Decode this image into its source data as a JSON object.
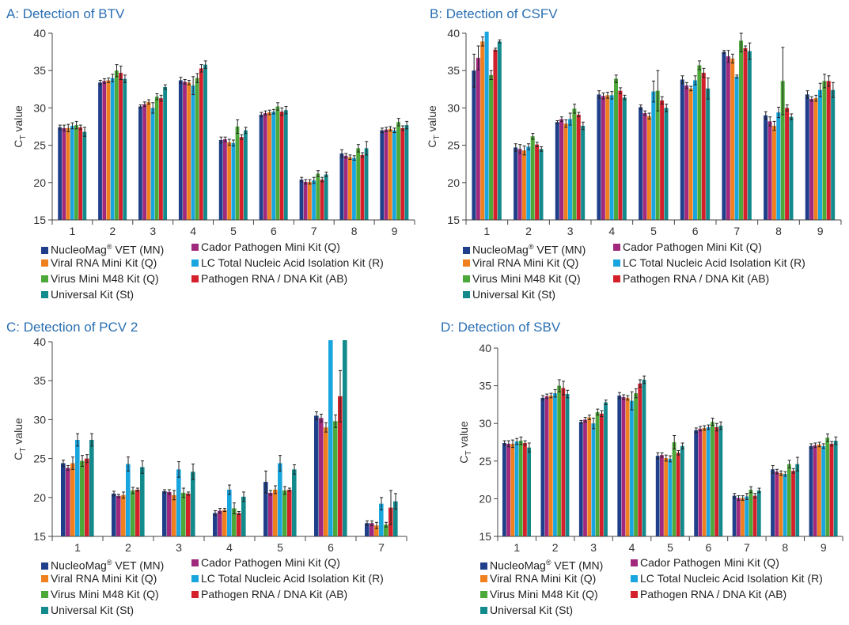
{
  "panels": [
    {
      "title": "A: Detection of BTV"
    },
    {
      "title": "B: Detection of CSFV"
    },
    {
      "title": "C: Detection of PCV 2"
    },
    {
      "title": "D: Detection of SBV"
    }
  ],
  "legend": {
    "items": [
      {
        "label": "NucleoMag",
        "sup": "®",
        "suffix": " VET (MN)",
        "color": "#1f3f8a"
      },
      {
        "label": "Cador Pathogen Mini Kit (Q)",
        "color": "#a0297e"
      },
      {
        "label": "Viral RNA Mini Kit (Q)",
        "color": "#f07f1e"
      },
      {
        "label": "LC Total Nucleic Acid Isolation Kit (R)",
        "color": "#19a6df"
      },
      {
        "label": "Virus Mini M48 Kit (Q)",
        "color": "#4da83a"
      },
      {
        "label": "Pathogen RNA / DNA Kit (AB)",
        "color": "#d3202a"
      },
      {
        "label": "Universal Kit (St)",
        "color": "#138a8c"
      }
    ]
  },
  "chart_data": [
    {
      "type": "bar",
      "title": "A: Detection of BTV",
      "ylabel": "CT value",
      "ylabel_main": "C",
      "ylabel_sub": "T",
      "ylabel_rest": " value",
      "ylim": [
        15,
        40
      ],
      "yticks": [
        "15",
        "20",
        "25",
        "30",
        "35",
        "40"
      ],
      "categories": [
        "1",
        "2",
        "3",
        "4",
        "5",
        "6",
        "7",
        "8",
        "9"
      ],
      "series": [
        {
          "name": "NucleoMag® VET (MN)",
          "values": [
            27.4,
            33.4,
            30.2,
            33.7,
            25.7,
            29.1,
            20.4,
            23.9,
            27.0
          ],
          "errors": [
            0.3,
            0.3,
            0.2,
            0.4,
            0.4,
            0.3,
            0.3,
            0.5,
            0.3
          ]
        },
        {
          "name": "Cador Pathogen Mini Kit (Q)",
          "values": [
            27.3,
            33.6,
            30.5,
            33.5,
            25.8,
            29.3,
            20.1,
            23.6,
            27.1
          ],
          "errors": [
            0.4,
            0.3,
            0.3,
            0.3,
            0.3,
            0.3,
            0.3,
            0.3,
            0.3
          ]
        },
        {
          "name": "Viral RNA Mini Kit (Q)",
          "values": [
            27.3,
            33.7,
            30.8,
            33.4,
            25.4,
            29.4,
            20.1,
            23.4,
            27.2
          ],
          "errors": [
            0.5,
            0.3,
            0.3,
            0.3,
            0.4,
            0.3,
            0.3,
            0.3,
            0.3
          ]
        },
        {
          "name": "LC Total Nucleic Acid Isolation Kit (R)",
          "values": [
            27.6,
            34.0,
            30.0,
            33.0,
            25.3,
            29.5,
            20.3,
            23.3,
            27.0
          ],
          "errors": [
            0.4,
            0.5,
            0.7,
            1.2,
            0.4,
            0.3,
            0.4,
            0.3,
            0.3
          ]
        },
        {
          "name": "Virus Mini M48 Kit (Q)",
          "values": [
            27.7,
            35.0,
            31.5,
            34.0,
            27.5,
            30.2,
            21.2,
            24.6,
            28.1
          ],
          "errors": [
            0.5,
            0.8,
            0.4,
            0.6,
            0.9,
            0.5,
            0.4,
            0.5,
            0.5
          ]
        },
        {
          "name": "Pathogen RNA / DNA Kit (AB)",
          "values": [
            27.4,
            34.7,
            31.3,
            35.3,
            26.1,
            29.5,
            20.4,
            23.7,
            27.3
          ],
          "errors": [
            0.3,
            0.9,
            0.4,
            0.5,
            0.3,
            0.5,
            0.3,
            0.3,
            0.3
          ]
        },
        {
          "name": "Universal Kit (St)",
          "values": [
            26.8,
            33.9,
            32.8,
            35.8,
            27.0,
            29.7,
            21.1,
            24.6,
            27.7
          ],
          "errors": [
            0.6,
            0.5,
            0.3,
            0.5,
            0.4,
            0.5,
            0.3,
            0.9,
            0.5
          ]
        }
      ]
    },
    {
      "type": "bar",
      "title": "B: Detection of CSFV",
      "ylabel": "CT value",
      "ylabel_main": "C",
      "ylabel_sub": "T",
      "ylabel_rest": " value",
      "ylim": [
        15,
        40
      ],
      "yticks": [
        "15",
        "20",
        "25",
        "30",
        "35",
        "40"
      ],
      "categories": [
        "1",
        "2",
        "3",
        "4",
        "5",
        "6",
        "7",
        "8",
        "9"
      ],
      "series": [
        {
          "name": "NucleoMag® VET (MN)",
          "values": [
            35.0,
            24.7,
            28.1,
            31.8,
            30.1,
            33.8,
            37.5,
            29.0,
            31.8
          ],
          "errors": [
            2.2,
            0.5,
            0.2,
            0.5,
            0.3,
            0.5,
            0.2,
            0.5,
            0.5
          ]
        },
        {
          "name": "Cador Pathogen Mini Kit (Q)",
          "values": [
            36.7,
            24.5,
            28.5,
            31.6,
            29.3,
            33.0,
            36.9,
            28.2,
            31.2
          ],
          "errors": [
            1.6,
            0.6,
            0.3,
            0.4,
            0.3,
            0.4,
            0.8,
            0.6,
            0.3
          ]
        },
        {
          "name": "Viral RNA Mini Kit (Q)",
          "values": [
            38.9,
            24.3,
            27.9,
            31.7,
            28.9,
            32.6,
            36.6,
            27.6,
            31.3
          ],
          "errors": [
            0.6,
            0.6,
            0.5,
            0.4,
            0.4,
            0.3,
            0.6,
            0.6,
            0.4
          ]
        },
        {
          "name": "LC Total Nucleic Acid Isolation Kit (R)",
          "values": [
            40.5,
            24.8,
            28.5,
            31.7,
            32.2,
            33.7,
            34.2,
            29.4,
            32.4
          ],
          "errors": [
            0.2,
            0.4,
            0.8,
            0.5,
            1.4,
            0.6,
            0.2,
            0.7,
            0.9
          ]
        },
        {
          "name": "Virus Mini M48 Kit (Q)",
          "values": [
            34.4,
            26.2,
            29.9,
            33.9,
            32.3,
            35.7,
            39.0,
            33.6,
            33.6
          ],
          "errors": [
            0.6,
            0.4,
            0.6,
            0.5,
            2.7,
            0.6,
            1.5,
            4.5,
            0.9
          ]
        },
        {
          "name": "Pathogen RNA / DNA Kit (AB)",
          "values": [
            37.8,
            25.1,
            29.1,
            32.3,
            31.0,
            34.7,
            38.0,
            30.0,
            33.6
          ],
          "errors": [
            0.2,
            0.3,
            0.3,
            0.4,
            0.5,
            0.6,
            0.3,
            0.4,
            0.7
          ]
        },
        {
          "name": "Universal Kit (St)",
          "values": [
            38.9,
            24.5,
            27.6,
            31.4,
            30.0,
            32.6,
            37.6,
            28.8,
            32.4
          ],
          "errors": [
            0.2,
            0.3,
            0.5,
            0.3,
            0.5,
            1.4,
            1.1,
            0.4,
            1.0
          ]
        }
      ]
    },
    {
      "type": "bar",
      "title": "C: Detection of PCV 2",
      "ylabel": "CT value",
      "ylabel_main": "C",
      "ylabel_sub": "T",
      "ylabel_rest": " value",
      "ylim": [
        15,
        40
      ],
      "yticks": [
        "15",
        "20",
        "25",
        "30",
        "35",
        "40"
      ],
      "categories": [
        "1",
        "2",
        "3",
        "4",
        "5",
        "6",
        "7"
      ],
      "series": [
        {
          "name": "NucleoMag® VET (MN)",
          "values": [
            24.4,
            20.5,
            20.8,
            18.0,
            22.0,
            30.5,
            16.7
          ],
          "errors": [
            0.4,
            0.3,
            0.2,
            0.3,
            1.4,
            0.5,
            0.3
          ]
        },
        {
          "name": "Cador Pathogen Mini Kit (Q)",
          "values": [
            23.8,
            20.2,
            20.7,
            18.3,
            20.6,
            30.2,
            16.7
          ],
          "errors": [
            0.3,
            0.2,
            0.3,
            0.3,
            0.3,
            0.5,
            0.3
          ]
        },
        {
          "name": "Viral RNA Mini Kit (Q)",
          "values": [
            24.4,
            20.3,
            20.3,
            18.4,
            21.0,
            29.0,
            16.4
          ],
          "errors": [
            0.8,
            0.4,
            0.6,
            0.2,
            0.5,
            0.6,
            0.4
          ]
        },
        {
          "name": "LC Total Nucleic Acid Isolation Kit (R)",
          "values": [
            27.4,
            24.3,
            23.6,
            21.0,
            24.4,
            41.0,
            19.2
          ],
          "errors": [
            0.8,
            0.9,
            1.0,
            0.6,
            1.0,
            0.0,
            0.8
          ]
        },
        {
          "name": "Virus Mini M48 Kit (Q)",
          "values": [
            24.7,
            20.9,
            20.6,
            18.6,
            20.9,
            29.8,
            16.5
          ],
          "errors": [
            0.7,
            0.4,
            0.6,
            0.7,
            0.5,
            0.8,
            0.3
          ]
        },
        {
          "name": "Pathogen RNA / DNA Kit (AB)",
          "values": [
            25.0,
            21.0,
            20.5,
            18.0,
            21.0,
            33.0,
            18.7
          ],
          "errors": [
            0.5,
            0.2,
            0.2,
            0.2,
            0.2,
            3.3,
            2.2
          ]
        },
        {
          "name": "Universal Kit (St)",
          "values": [
            27.4,
            23.9,
            23.3,
            20.1,
            23.6,
            41.0,
            19.5
          ],
          "errors": [
            0.8,
            0.8,
            1.0,
            0.6,
            0.6,
            0.0,
            1.0
          ]
        }
      ]
    },
    {
      "type": "bar",
      "title": "D: Detection of SBV",
      "ylabel": "CT value",
      "ylabel_main": "C",
      "ylabel_sub": "T",
      "ylabel_rest": " value",
      "ylim": [
        15,
        40
      ],
      "yticks": [
        "15",
        "20",
        "25",
        "30",
        "35",
        "40"
      ],
      "categories": [
        "1",
        "2",
        "3",
        "4",
        "5",
        "6",
        "7",
        "8",
        "9"
      ],
      "series": [
        {
          "name": "NucleoMag® VET (MN)",
          "values": [
            27.4,
            33.4,
            30.2,
            33.7,
            25.7,
            29.1,
            20.4,
            23.9,
            27.0
          ],
          "errors": [
            0.3,
            0.3,
            0.2,
            0.4,
            0.4,
            0.3,
            0.3,
            0.5,
            0.3
          ]
        },
        {
          "name": "Cador Pathogen Mini Kit (Q)",
          "values": [
            27.3,
            33.6,
            30.5,
            33.5,
            25.8,
            29.3,
            20.1,
            23.6,
            27.1
          ],
          "errors": [
            0.4,
            0.3,
            0.3,
            0.3,
            0.3,
            0.3,
            0.3,
            0.3,
            0.3
          ]
        },
        {
          "name": "Viral RNA Mini Kit (Q)",
          "values": [
            27.3,
            33.7,
            30.8,
            33.4,
            25.4,
            29.4,
            20.1,
            23.4,
            27.2
          ],
          "errors": [
            0.5,
            0.3,
            0.3,
            0.3,
            0.4,
            0.3,
            0.3,
            0.3,
            0.3
          ]
        },
        {
          "name": "LC Total Nucleic Acid Isolation Kit (R)",
          "values": [
            27.6,
            34.0,
            30.0,
            33.0,
            25.3,
            29.5,
            20.3,
            23.3,
            27.0
          ],
          "errors": [
            0.4,
            0.5,
            0.7,
            1.2,
            0.4,
            0.3,
            0.4,
            0.3,
            0.3
          ]
        },
        {
          "name": "Virus Mini M48 Kit (Q)",
          "values": [
            27.7,
            35.0,
            31.5,
            34.0,
            27.5,
            30.2,
            21.2,
            24.6,
            28.1
          ],
          "errors": [
            0.5,
            0.8,
            0.4,
            0.6,
            0.9,
            0.5,
            0.4,
            0.5,
            0.5
          ]
        },
        {
          "name": "Pathogen RNA / DNA Kit (AB)",
          "values": [
            27.4,
            34.7,
            31.3,
            35.3,
            26.1,
            29.5,
            20.4,
            23.7,
            27.3
          ],
          "errors": [
            0.3,
            0.9,
            0.4,
            0.5,
            0.3,
            0.5,
            0.3,
            0.3,
            0.3
          ]
        },
        {
          "name": "Universal Kit (St)",
          "values": [
            26.8,
            33.9,
            32.8,
            35.8,
            27.0,
            29.7,
            21.1,
            24.6,
            27.7
          ],
          "errors": [
            0.6,
            0.5,
            0.3,
            0.5,
            0.4,
            0.5,
            0.3,
            0.9,
            0.5
          ]
        }
      ]
    }
  ]
}
